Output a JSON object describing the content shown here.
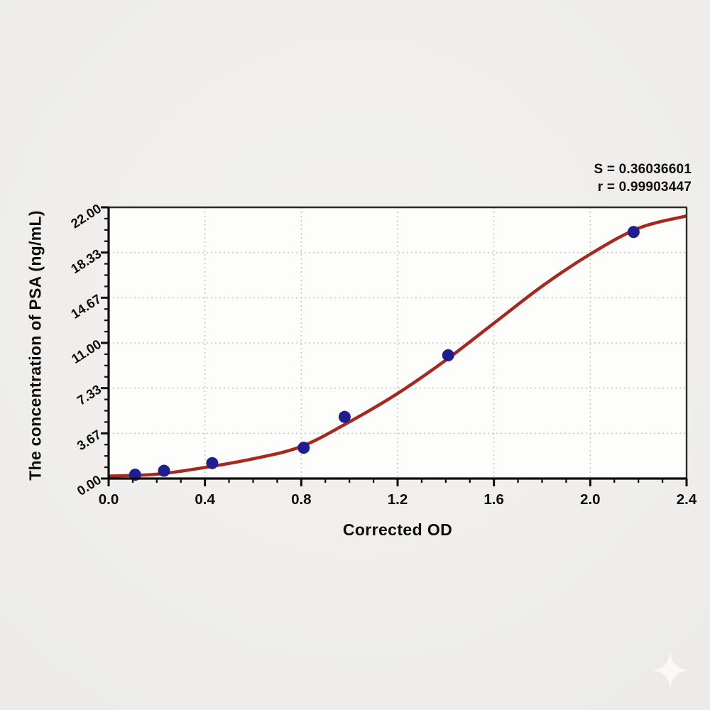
{
  "stats": {
    "s_line": "S = 0.36036601",
    "r_line": "r = 0.99903447"
  },
  "chart_data": {
    "type": "scatter",
    "title": "",
    "xlabel": "Corrected OD",
    "ylabel": "The concentration of PSA (ng/mL)",
    "xlim": [
      0.0,
      2.4
    ],
    "ylim": [
      0.0,
      22.0
    ],
    "x_ticks": {
      "values": [
        0.0,
        0.4,
        0.8,
        1.2,
        1.6,
        2.0,
        2.4
      ],
      "labels": [
        "0.0",
        "0.4",
        "0.8",
        "1.2",
        "1.6",
        "2.0",
        "2.4"
      ],
      "minor_per_major": 3
    },
    "y_ticks": {
      "values": [
        0.0,
        3.667,
        7.333,
        11.0,
        14.667,
        18.333,
        22.0
      ],
      "labels": [
        "0.00",
        "3.67",
        "7.33",
        "11.00",
        "14.67",
        "18.33",
        "22.00"
      ],
      "minor_per_major": 3,
      "label_rotation_deg": -33
    },
    "grid": {
      "on": true,
      "style": "dotted",
      "at": "major-ticks"
    },
    "legend": {
      "visible": false
    },
    "annotations": [
      "S = 0.36036601",
      "r = 0.99903447"
    ],
    "series": [
      {
        "name": "standard-points",
        "kind": "scatter",
        "marker": "circle",
        "points": [
          [
            0.11,
            0.31
          ],
          [
            0.23,
            0.63
          ],
          [
            0.43,
            1.25
          ],
          [
            0.81,
            2.5
          ],
          [
            0.98,
            5.0
          ],
          [
            1.41,
            10.0
          ],
          [
            2.18,
            20.0
          ]
        ]
      },
      {
        "name": "fitted-curve",
        "kind": "line",
        "x": [
          0.0,
          0.2,
          0.4,
          0.6,
          0.8,
          1.0,
          1.2,
          1.4,
          1.6,
          1.8,
          2.0,
          2.2,
          2.4
        ],
        "y": [
          0.2,
          0.35,
          0.9,
          1.6,
          2.6,
          4.6,
          6.9,
          9.6,
          12.6,
          15.6,
          18.2,
          20.3,
          21.3
        ]
      }
    ],
    "colors": {
      "curve": "#a6291f",
      "point": "#1f1d90",
      "grid": "#c8c8c5",
      "axis": "#0d0d0d",
      "frame": "#2b2b2b",
      "plot_bg": "#fdfdfc",
      "page_bg": "#efeeec",
      "text": "#0c0c0c"
    }
  },
  "watermark": {
    "icon_name": "sparkle-star-icon"
  }
}
